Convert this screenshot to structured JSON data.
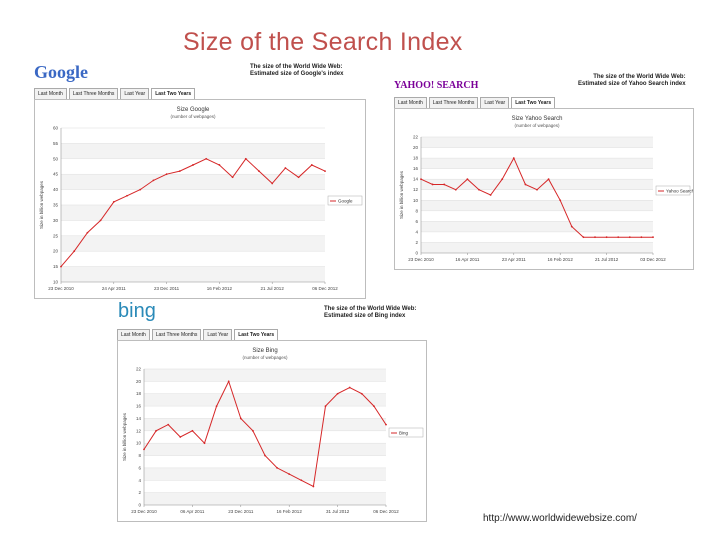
{
  "slide": {
    "title": "Size of the Search Index",
    "url": "http://www.worldwidewebsize.com/"
  },
  "panels": [
    {
      "id": "google",
      "logo": "Google",
      "heading_line1": "The size of the World Wide Web:",
      "heading_line2": "Estimated size of Google's index",
      "tabs": [
        "Last Month",
        "Last Three Months",
        "Last Year",
        "Last Two Years"
      ],
      "active_tab": 3,
      "line_color": "#d62728"
    },
    {
      "id": "yahoo",
      "logo": "YAHOO! SEARCH",
      "heading_line1": "The size of the World Wide Web:",
      "heading_line2": "Estimated size of Yahoo Search index",
      "tabs": [
        "Last Month",
        "Last Three Months",
        "Last Year",
        "Last Two Years"
      ],
      "active_tab": 3,
      "line_color": "#d62728"
    },
    {
      "id": "bing",
      "logo": "bing",
      "heading_line1": "The size of the World Wide Web:",
      "heading_line2": "Estimated size of Bing index",
      "tabs": [
        "Last Month",
        "Last Three Months",
        "Last Year",
        "Last Two Years"
      ],
      "active_tab": 3,
      "line_color": "#d62728"
    }
  ],
  "chart_data": [
    {
      "type": "line",
      "title": "Size Google",
      "subtitle": "(number of webpages)",
      "ylabel": "Size in billion webpages",
      "ylim": [
        10,
        60
      ],
      "yticks": [
        10,
        15,
        20,
        25,
        30,
        35,
        40,
        45,
        50,
        55,
        60
      ],
      "xticks": [
        "23 Dec 2010",
        "24 Apr 2011",
        "23 Dec 2011",
        "16 Feb 2012",
        "21 Jul 2012",
        "06 Dec 2012"
      ],
      "legend": "top-right",
      "series": [
        {
          "name": "Google",
          "x": [
            0,
            5,
            10,
            15,
            20,
            25,
            30,
            35,
            40,
            45,
            50,
            55,
            60,
            65,
            70,
            75,
            80,
            85,
            90,
            95,
            100
          ],
          "values": [
            15,
            20,
            26,
            30,
            36,
            38,
            40,
            43,
            45,
            46,
            48,
            50,
            48,
            44,
            50,
            46,
            42,
            47,
            44,
            48,
            46
          ]
        }
      ]
    },
    {
      "type": "line",
      "title": "Size Yahoo Search",
      "subtitle": "(number of webpages)",
      "ylabel": "Size in billion webpages",
      "ylim": [
        0,
        22
      ],
      "yticks": [
        0,
        2,
        4,
        6,
        8,
        10,
        12,
        14,
        16,
        18,
        20,
        22
      ],
      "xticks": [
        "23 Dec 2010",
        "16 Apr 2011",
        "23 Apr 2011",
        "16 Feb 2012",
        "21 Jul 2012",
        "03 Dec 2012"
      ],
      "legend": "top-right",
      "series": [
        {
          "name": "Yahoo Search",
          "x": [
            0,
            5,
            10,
            15,
            20,
            25,
            30,
            35,
            40,
            45,
            50,
            55,
            60,
            65,
            70,
            75,
            80,
            85,
            90,
            95,
            100
          ],
          "values": [
            14,
            13,
            13,
            12,
            14,
            12,
            11,
            14,
            18,
            13,
            12,
            14,
            10,
            5,
            3,
            3,
            3,
            3,
            3,
            3,
            3
          ]
        }
      ]
    },
    {
      "type": "line",
      "title": "Size Bing",
      "subtitle": "(number of webpages)",
      "ylabel": "Size in billion webpages",
      "ylim": [
        0,
        22
      ],
      "yticks": [
        0,
        2,
        4,
        6,
        8,
        10,
        12,
        14,
        16,
        18,
        20,
        22
      ],
      "xticks": [
        "23 Dec 2010",
        "06 Apr 2011",
        "23 Dec 2011",
        "16 Feb 2012",
        "31 Jul 2012",
        "06 Dec 2012"
      ],
      "legend": "right",
      "series": [
        {
          "name": "Bing",
          "x": [
            0,
            5,
            10,
            15,
            20,
            25,
            30,
            35,
            40,
            45,
            50,
            55,
            60,
            65,
            70,
            75,
            80,
            85,
            90,
            95,
            100
          ],
          "values": [
            9,
            12,
            13,
            11,
            12,
            10,
            16,
            20,
            14,
            12,
            8,
            6,
            5,
            4,
            3,
            16,
            18,
            19,
            18,
            16,
            13
          ]
        }
      ]
    }
  ]
}
